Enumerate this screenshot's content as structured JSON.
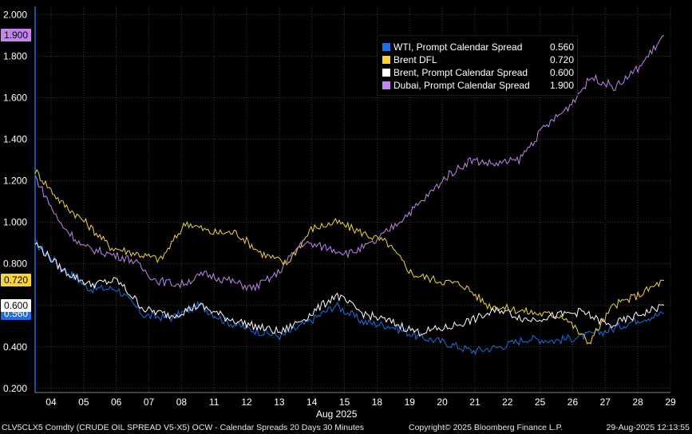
{
  "chart_data": {
    "type": "line",
    "title": "Calendar Spreads 20 Days 30 Minutes",
    "xlabel": "Aug 2025",
    "ylabel": "",
    "ylim": [
      0.18,
      2.04
    ],
    "y_ticks": [
      "0.200",
      "0.400",
      "0.600",
      "0.800",
      "1.000",
      "1.200",
      "1.400",
      "1.600",
      "1.800",
      "2.000"
    ],
    "y_tick_values": [
      0.2,
      0.4,
      0.6,
      0.8,
      1.0,
      1.2,
      1.4,
      1.6,
      1.8,
      2.0
    ],
    "x_ticks": [
      "04",
      "05",
      "06",
      "07",
      "08",
      "11",
      "12",
      "13",
      "14",
      "15",
      "18",
      "19",
      "20",
      "21",
      "22",
      "25",
      "26",
      "27",
      "28",
      "29"
    ],
    "series": [
      {
        "name": "WTI, Prompt Calendar Spread",
        "color": "#1e6fe3",
        "last": "0.560",
        "values": [
          0.9,
          0.78,
          0.68,
          0.68,
          0.55,
          0.54,
          0.6,
          0.52,
          0.48,
          0.45,
          0.52,
          0.6,
          0.52,
          0.5,
          0.45,
          0.42,
          0.38,
          0.4,
          0.44,
          0.43,
          0.45,
          0.48,
          0.53,
          0.56
        ]
      },
      {
        "name": "Brent DFL",
        "color": "#f5d53a",
        "last": "0.720",
        "values": [
          1.25,
          1.1,
          1.0,
          0.88,
          0.85,
          0.82,
          1.0,
          0.95,
          0.95,
          0.85,
          0.8,
          0.97,
          1.0,
          0.95,
          0.9,
          0.75,
          0.72,
          0.7,
          0.6,
          0.58,
          0.56,
          0.55,
          0.42,
          0.6,
          0.65,
          0.72
        ]
      },
      {
        "name": "Brent, Prompt Calendar Spread",
        "color": "#ffffff",
        "last": "0.600",
        "values": [
          0.9,
          0.77,
          0.7,
          0.72,
          0.58,
          0.55,
          0.6,
          0.54,
          0.5,
          0.47,
          0.55,
          0.65,
          0.56,
          0.52,
          0.47,
          0.49,
          0.53,
          0.58,
          0.53,
          0.55,
          0.57,
          0.5,
          0.55,
          0.6
        ]
      },
      {
        "name": "Dubai, Prompt Calendar Spread",
        "color": "#c585ef",
        "last": "1.900",
        "values": [
          1.22,
          1.0,
          0.88,
          0.85,
          0.82,
          0.72,
          0.7,
          0.75,
          0.72,
          0.68,
          0.75,
          0.9,
          0.88,
          0.85,
          0.9,
          1.0,
          1.1,
          1.22,
          1.3,
          1.28,
          1.3,
          1.45,
          1.55,
          1.7,
          1.65,
          1.75,
          1.9
        ]
      }
    ]
  },
  "month_label": "Aug 2025",
  "footer": {
    "left": "CLV5CLX5 Comdty (CRUDE OIL SPREAD  V5-X5) OCW - Calendar Spreads 20 Days 30 Minutes",
    "middle": "Copyright© 2025 Bloomberg Finance L.P.",
    "right": "29-Aug-2025 12:13:55"
  }
}
